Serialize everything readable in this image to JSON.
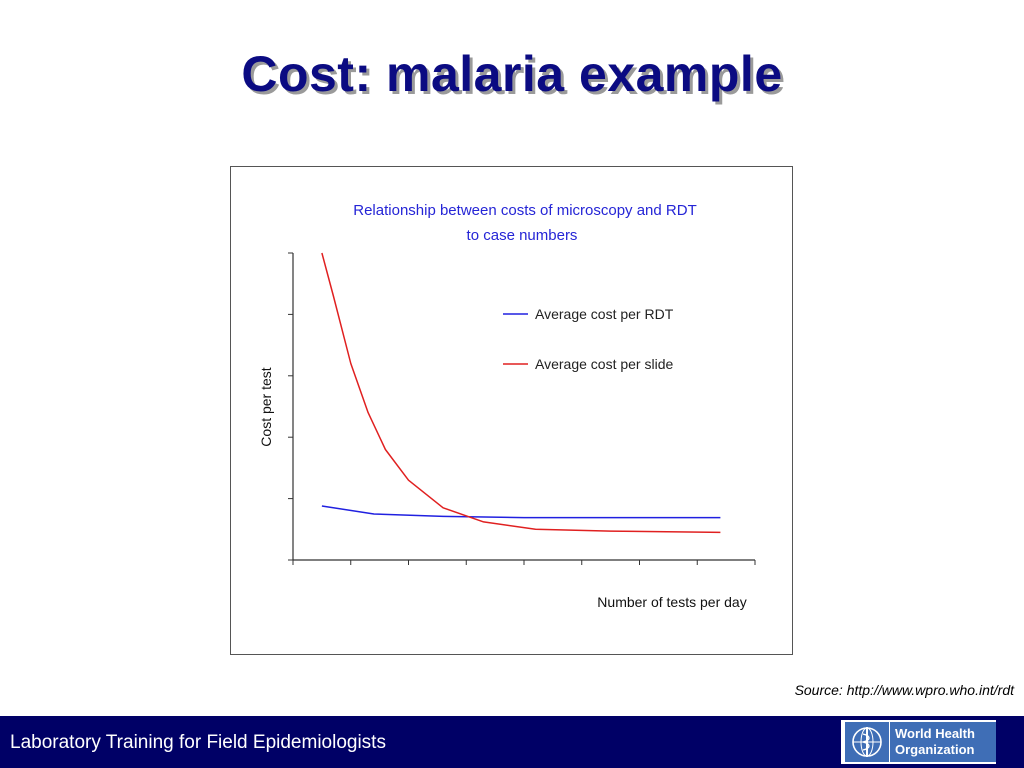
{
  "slide": {
    "title": "Cost: malaria example",
    "source": "Source: http://www.wpro.who.int/rdt",
    "footer_text": "Laboratory Training for Field Epidemiologists",
    "logo_line1": "World Health",
    "logo_line2": "Organization"
  },
  "colors": {
    "title": "#0b0b82",
    "footer_bg": "#000066",
    "rdt_line": "#2020e0",
    "slide_line": "#e02020"
  },
  "chart_data": {
    "type": "line",
    "title_line1": "Relationship between costs of microscopy and RDT",
    "title_line2": "to case numbers",
    "xlabel": "Number of tests per day",
    "ylabel": "Cost per test",
    "xlim": [
      0,
      8
    ],
    "ylim": [
      0,
      5
    ],
    "x_ticks": [
      0,
      1,
      2,
      3,
      4,
      5,
      6,
      7,
      8
    ],
    "y_ticks": [
      0,
      1,
      2,
      3,
      4,
      5
    ],
    "grid": false,
    "legend_position": "top-right",
    "series": [
      {
        "name": "Average cost per RDT",
        "color": "#2020e0",
        "x": [
          0.5,
          1.4,
          2.6,
          4,
          5.5,
          7.4
        ],
        "y": [
          0.88,
          0.75,
          0.71,
          0.69,
          0.69,
          0.69
        ]
      },
      {
        "name": "Average cost per slide",
        "color": "#e02020",
        "x": [
          0.5,
          0.7,
          1.0,
          1.3,
          1.6,
          2.0,
          2.6,
          3.3,
          4.2,
          5.5,
          7.4
        ],
        "y": [
          5.0,
          4.3,
          3.2,
          2.4,
          1.8,
          1.3,
          0.85,
          0.62,
          0.5,
          0.47,
          0.45
        ]
      }
    ]
  }
}
